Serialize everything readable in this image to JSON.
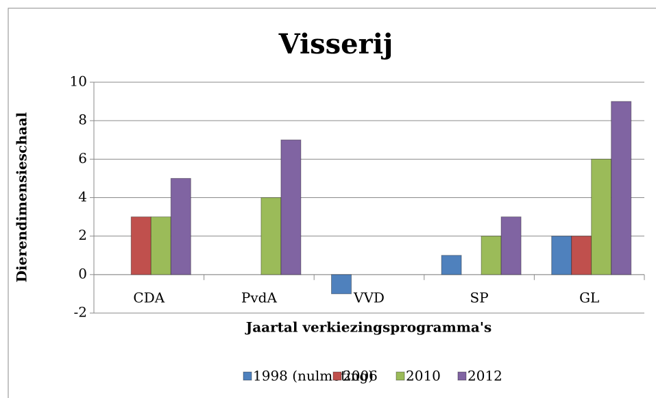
{
  "chart_data": {
    "type": "bar",
    "title": "Visserij",
    "xlabel": "Jaartal verkiezingsprogramma's",
    "ylabel": "Dierendimensieschaal",
    "categories": [
      "CDA",
      "PvdA",
      "VVD",
      "SP",
      "GL"
    ],
    "series": [
      {
        "name": "1998 (nulmeting)",
        "color": "#4f81bd",
        "values": [
          0,
          0,
          -1,
          1,
          2
        ]
      },
      {
        "name": "2006",
        "color": "#c0504d",
        "values": [
          3,
          0,
          0,
          0,
          2
        ]
      },
      {
        "name": "2010",
        "color": "#9bbb59",
        "values": [
          3,
          4,
          0,
          2,
          6
        ]
      },
      {
        "name": "2012",
        "color": "#8064a2",
        "values": [
          5,
          7,
          0,
          3,
          9
        ]
      }
    ],
    "ylim": [
      -2,
      10
    ],
    "yticks": [
      -2,
      0,
      2,
      4,
      6,
      8,
      10
    ],
    "grid": true,
    "legend": "bottom"
  }
}
